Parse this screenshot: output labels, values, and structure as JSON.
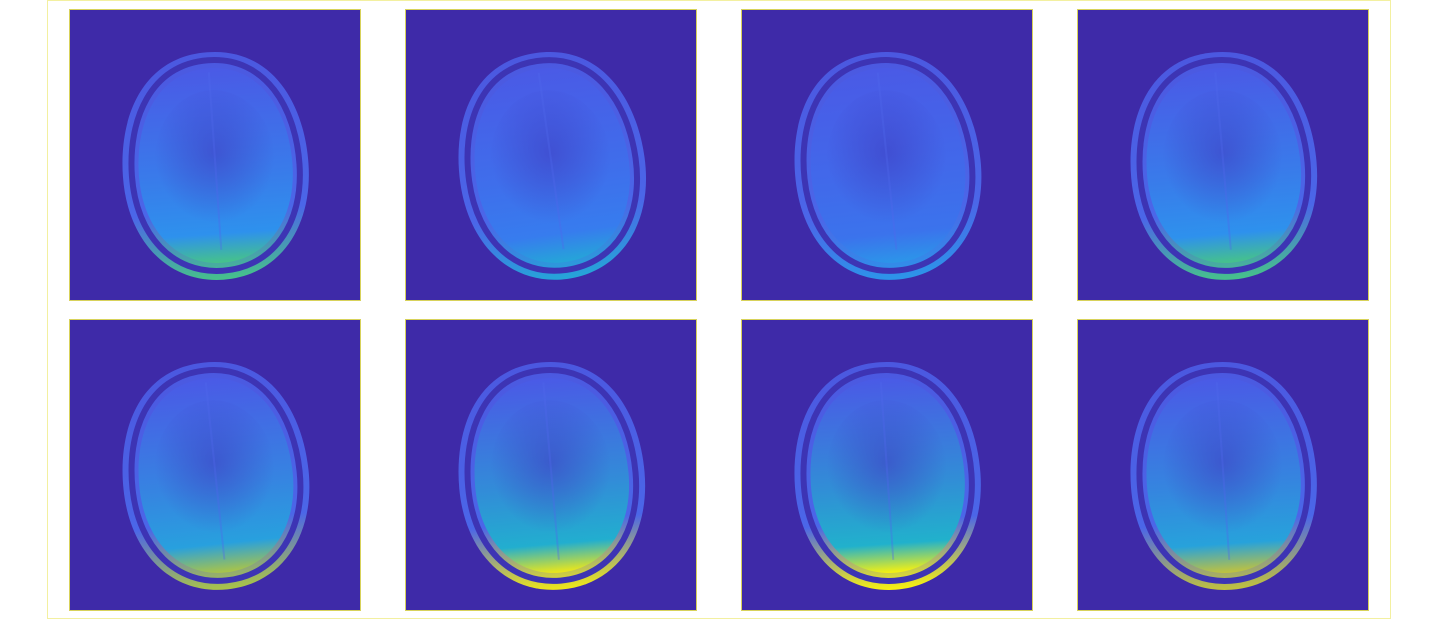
{
  "figure": {
    "colormap": "parula",
    "background_color": "#3e2aa8",
    "panel_border_color": "#d8d25a",
    "panels": [
      {
        "row": 1,
        "col": 1,
        "posterior_brightness": 0.45,
        "skull_tilt": -4
      },
      {
        "row": 1,
        "col": 2,
        "posterior_brightness": 0.2,
        "skull_tilt": -8
      },
      {
        "row": 1,
        "col": 3,
        "posterior_brightness": 0.1,
        "skull_tilt": -6
      },
      {
        "row": 1,
        "col": 4,
        "posterior_brightness": 0.45,
        "skull_tilt": -5
      },
      {
        "row": 2,
        "col": 1,
        "posterior_brightness": 0.7,
        "skull_tilt": -6
      },
      {
        "row": 2,
        "col": 2,
        "posterior_brightness": 0.95,
        "skull_tilt": -5
      },
      {
        "row": 2,
        "col": 3,
        "posterior_brightness": 1.0,
        "skull_tilt": -4
      },
      {
        "row": 2,
        "col": 4,
        "posterior_brightness": 0.75,
        "skull_tilt": -4
      }
    ]
  }
}
